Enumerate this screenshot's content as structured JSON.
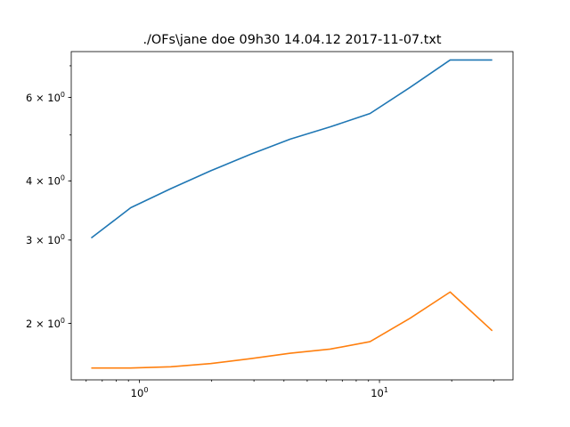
{
  "chart_data": {
    "type": "line",
    "title": "./OFs\\jane doe 09h30 14.04.12 2017-11-07.txt",
    "xlabel": "",
    "ylabel": "",
    "xscale": "log",
    "yscale": "log",
    "xlim": [
      0.52,
      36
    ],
    "ylim": [
      1.52,
      7.5
    ],
    "grid": false,
    "x_ticks": [
      {
        "value": 1,
        "label_base": "10",
        "label_exp": "0"
      },
      {
        "value": 10,
        "label_base": "10",
        "label_exp": "1"
      }
    ],
    "y_ticks": [
      {
        "value": 2,
        "label_coef": "2",
        "label_base": "10",
        "label_exp": "0"
      },
      {
        "value": 3,
        "label_coef": "3",
        "label_base": "10",
        "label_exp": "0"
      },
      {
        "value": 4,
        "label_coef": "4",
        "label_base": "10",
        "label_exp": "0"
      },
      {
        "value": 6,
        "label_coef": "6",
        "label_base": "10",
        "label_exp": "0"
      }
    ],
    "series": [
      {
        "color": "#1f77b4",
        "x": [
          0.63,
          0.92,
          1.35,
          1.98,
          2.9,
          4.25,
          6.23,
          9.13,
          13.4,
          19.7,
          29.5
        ],
        "y": [
          3.03,
          3.51,
          3.85,
          4.2,
          4.55,
          4.9,
          5.2,
          5.55,
          6.3,
          7.2,
          7.2
        ]
      },
      {
        "color": "#ff7f0e",
        "x": [
          0.63,
          0.92,
          1.35,
          1.98,
          2.9,
          4.25,
          6.23,
          9.13,
          13.4,
          19.7,
          29.5
        ],
        "y": [
          1.61,
          1.61,
          1.62,
          1.645,
          1.685,
          1.73,
          1.765,
          1.83,
          2.05,
          2.33,
          1.93
        ]
      }
    ]
  }
}
